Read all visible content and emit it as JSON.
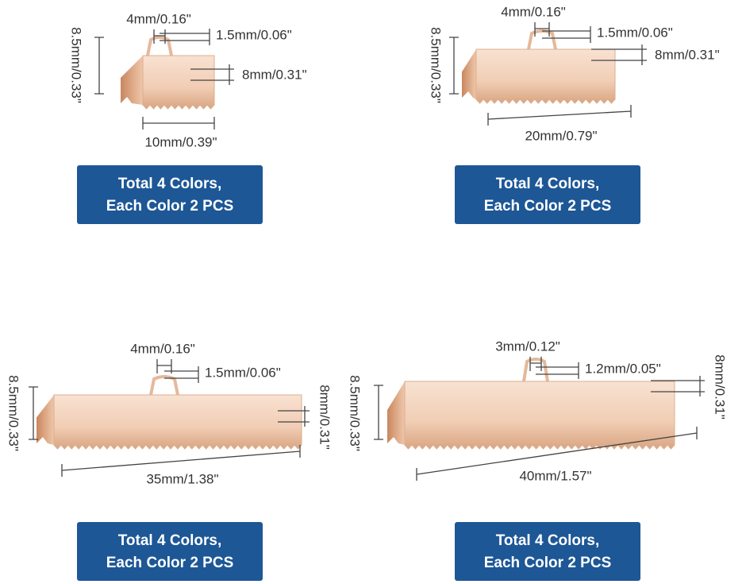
{
  "panels": [
    {
      "height": "8.5mm/0.33\"",
      "wire_width": "4mm/0.16\"",
      "wire_thickness": "1.5mm/0.06\"",
      "depth": "8mm/0.31\"",
      "length": "10mm/0.39\"",
      "badge": [
        "Total 4 Colors,",
        "Each Color 2 PCS"
      ]
    },
    {
      "height": "8.5mm/0.33\"",
      "wire_width": "4mm/0.16\"",
      "wire_thickness": "1.5mm/0.06\"",
      "depth": "8mm/0.31\"",
      "length": "20mm/0.79\"",
      "badge": [
        "Total 4 Colors,",
        "Each Color 2 PCS"
      ]
    },
    {
      "height": "8.5mm/0.33\"",
      "wire_width": "4mm/0.16\"",
      "wire_thickness": "1.5mm/0.06\"",
      "depth": "8mm/0.31\"",
      "length": "35mm/1.38\"",
      "badge": [
        "Total 4 Colors,",
        "Each Color 2 PCS"
      ]
    },
    {
      "height": "8.5mm/0.33\"",
      "wire_width": "3mm/0.12\"",
      "wire_thickness": "1.2mm/0.05\"",
      "depth": "8mm/0.31\"",
      "length": "40mm/1.57\"",
      "badge": [
        "Total 4 Colors,",
        "Each Color 2 PCS"
      ]
    }
  ]
}
